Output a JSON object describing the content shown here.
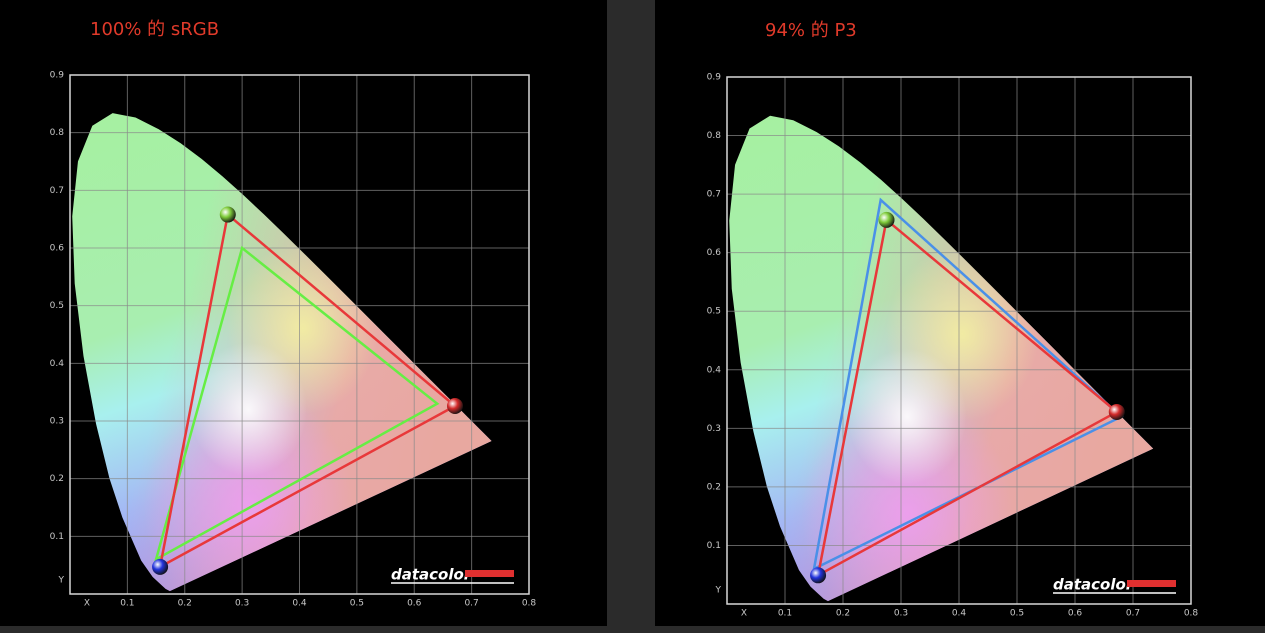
{
  "chart_data": [
    {
      "type": "gamut",
      "title": "100% 的 sRGB",
      "logo": "datacolor",
      "xlim": [
        0,
        0.8
      ],
      "ylim": [
        0,
        0.9
      ],
      "xticks": [
        {
          "value": 0,
          "label": "X"
        },
        0.1,
        0.2,
        0.3,
        0.4,
        0.5,
        0.6,
        0.7,
        0.8
      ],
      "yticks": [
        {
          "value": 0,
          "label": "Y"
        },
        0.1,
        0.2,
        0.3,
        0.4,
        0.5,
        0.6,
        0.7,
        0.8,
        0.9
      ],
      "grid": true,
      "series": [
        {
          "color": "#66ee44",
          "x": [
            0.64,
            0.3,
            0.15
          ],
          "y": [
            0.33,
            0.6,
            0.06
          ]
        },
        {
          "color": "#e8383a",
          "x": [
            0.671,
            0.275,
            0.157
          ],
          "y": [
            0.326,
            0.658,
            0.047
          ],
          "marker_colors": [
            "#d42a2a",
            "#7fcc3a",
            "#2233dd"
          ]
        }
      ]
    },
    {
      "type": "gamut",
      "title": "94% 的 P3",
      "logo": "datacolor",
      "xlim": [
        0,
        0.8
      ],
      "ylim": [
        0,
        0.9
      ],
      "xticks": [
        {
          "value": 0,
          "label": "X"
        },
        0.1,
        0.2,
        0.3,
        0.4,
        0.5,
        0.6,
        0.7,
        0.8
      ],
      "yticks": [
        {
          "value": 0,
          "label": "Y"
        },
        0.1,
        0.2,
        0.3,
        0.4,
        0.5,
        0.6,
        0.7,
        0.8,
        0.9
      ],
      "grid": true,
      "series": [
        {
          "color": "#4a90e8",
          "x": [
            0.68,
            0.265,
            0.15
          ],
          "y": [
            0.32,
            0.69,
            0.06
          ]
        },
        {
          "color": "#e8383a",
          "x": [
            0.672,
            0.275,
            0.157
          ],
          "y": [
            0.328,
            0.656,
            0.049
          ],
          "marker_colors": [
            "#d42a2a",
            "#7fcc3a",
            "#2233dd"
          ]
        }
      ]
    }
  ]
}
